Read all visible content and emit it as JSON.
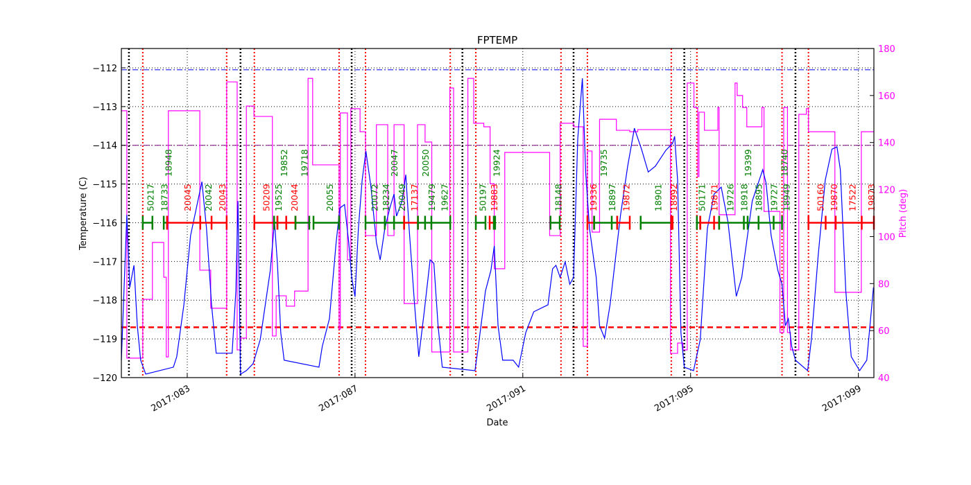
{
  "chart_data": {
    "type": "line",
    "title": "FPTEMP",
    "xlabel": "Date",
    "ylabel": "Temperature (C)",
    "y2label": "Pitch (deg)",
    "xlim": [
      81.43,
      99.37
    ],
    "ylim": [
      -120,
      -111.5
    ],
    "y2lim": [
      40,
      180
    ],
    "grid": true,
    "x_ticks": [
      {
        "value": 83,
        "label": "2017:083"
      },
      {
        "value": 87,
        "label": "2017:087"
      },
      {
        "value": 91,
        "label": "2017:091"
      },
      {
        "value": 95,
        "label": "2017:095"
      },
      {
        "value": 99,
        "label": "2017:099"
      }
    ],
    "y_ticks": [
      -120,
      -119,
      -118,
      -117,
      -116,
      -115,
      -114,
      -113,
      -112
    ],
    "y2_ticks": [
      40,
      60,
      80,
      100,
      120,
      140,
      160,
      180
    ],
    "colors": {
      "temperature": "#0000ff",
      "pitch": "#ff00ff",
      "green": "#008000",
      "red": "#ff0000",
      "purple": "#800080",
      "axis2": "#ff00ff"
    },
    "hlines": [
      {
        "value": -112.05,
        "color": "#0000ff",
        "style": "dashdot"
      },
      {
        "value": -114.0,
        "color": "#800080",
        "style": "dashdot"
      },
      {
        "value": -118.7,
        "color": "#ff0000",
        "style": "dashed"
      }
    ],
    "vlines_black": [
      81.61,
      84.27,
      86.92,
      89.56,
      92.21,
      94.85,
      97.5
    ],
    "vlines_red": [
      81.94,
      83.94,
      84.6,
      86.62,
      87.25,
      89.27,
      89.88,
      91.91,
      92.54,
      94.54,
      95.15,
      97.18,
      97.81
    ],
    "temperature": [
      [
        81.43,
        -119.55
      ],
      [
        81.56,
        -115.8
      ],
      [
        81.63,
        -117.67
      ],
      [
        81.73,
        -117.1
      ],
      [
        81.81,
        -118.66
      ],
      [
        81.89,
        -119.55
      ],
      [
        82.01,
        -119.91
      ],
      [
        82.67,
        -119.73
      ],
      [
        82.75,
        -119.46
      ],
      [
        82.92,
        -118.12
      ],
      [
        83.08,
        -116.33
      ],
      [
        83.35,
        -114.94
      ],
      [
        83.46,
        -116.15
      ],
      [
        83.58,
        -118.12
      ],
      [
        83.69,
        -119.37
      ],
      [
        84.07,
        -119.37
      ],
      [
        84.16,
        -117.76
      ],
      [
        84.21,
        -115.44
      ],
      [
        84.27,
        -119.91
      ],
      [
        84.41,
        -119.82
      ],
      [
        84.57,
        -119.64
      ],
      [
        84.74,
        -119.02
      ],
      [
        84.98,
        -117.23
      ],
      [
        85.08,
        -115.97
      ],
      [
        85.15,
        -117.05
      ],
      [
        85.23,
        -118.84
      ],
      [
        85.31,
        -119.55
      ],
      [
        86.14,
        -119.73
      ],
      [
        86.22,
        -119.19
      ],
      [
        86.39,
        -118.48
      ],
      [
        86.55,
        -116.51
      ],
      [
        86.64,
        -115.62
      ],
      [
        86.75,
        -115.53
      ],
      [
        86.85,
        -116.51
      ],
      [
        86.92,
        -117.41
      ],
      [
        87.0,
        -117.91
      ],
      [
        87.08,
        -116.15
      ],
      [
        87.17,
        -114.9
      ],
      [
        87.26,
        -114.15
      ],
      [
        87.38,
        -115.08
      ],
      [
        87.51,
        -116.51
      ],
      [
        87.6,
        -116.96
      ],
      [
        87.71,
        -116.15
      ],
      [
        87.83,
        -115.62
      ],
      [
        87.93,
        -115.26
      ],
      [
        87.99,
        -115.83
      ],
      [
        88.12,
        -115.44
      ],
      [
        88.21,
        -114.76
      ],
      [
        88.29,
        -116.15
      ],
      [
        88.42,
        -118.12
      ],
      [
        88.52,
        -119.46
      ],
      [
        88.65,
        -118.3
      ],
      [
        88.79,
        -116.96
      ],
      [
        88.88,
        -117.05
      ],
      [
        88.98,
        -118.66
      ],
      [
        89.08,
        -119.73
      ],
      [
        89.86,
        -119.82
      ],
      [
        89.94,
        -119.19
      ],
      [
        90.11,
        -117.76
      ],
      [
        90.24,
        -117.23
      ],
      [
        90.32,
        -116.6
      ],
      [
        90.41,
        -118.66
      ],
      [
        90.52,
        -119.55
      ],
      [
        90.77,
        -119.55
      ],
      [
        90.9,
        -119.73
      ],
      [
        91.07,
        -118.84
      ],
      [
        91.26,
        -118.3
      ],
      [
        91.6,
        -118.12
      ],
      [
        91.71,
        -117.19
      ],
      [
        91.79,
        -117.1
      ],
      [
        91.89,
        -117.41
      ],
      [
        92.01,
        -117.01
      ],
      [
        92.12,
        -117.59
      ],
      [
        92.21,
        -117.41
      ],
      [
        92.31,
        -113.83
      ],
      [
        92.42,
        -112.27
      ],
      [
        92.5,
        -114.72
      ],
      [
        92.59,
        -116.15
      ],
      [
        92.75,
        -117.41
      ],
      [
        92.83,
        -118.66
      ],
      [
        92.95,
        -118.98
      ],
      [
        93.08,
        -118.12
      ],
      [
        93.33,
        -115.8
      ],
      [
        93.5,
        -114.54
      ],
      [
        93.66,
        -113.56
      ],
      [
        93.83,
        -114.1
      ],
      [
        93.99,
        -114.69
      ],
      [
        94.16,
        -114.54
      ],
      [
        94.41,
        -114.13
      ],
      [
        94.57,
        -113.95
      ],
      [
        94.62,
        -113.77
      ],
      [
        94.69,
        -114.9
      ],
      [
        94.77,
        -118.84
      ],
      [
        94.85,
        -119.73
      ],
      [
        95.07,
        -119.82
      ],
      [
        95.23,
        -119.02
      ],
      [
        95.4,
        -116.15
      ],
      [
        95.56,
        -115.26
      ],
      [
        95.73,
        -115.08
      ],
      [
        95.89,
        -115.97
      ],
      [
        96.09,
        -117.9
      ],
      [
        96.22,
        -117.41
      ],
      [
        96.47,
        -115.44
      ],
      [
        96.72,
        -114.63
      ],
      [
        96.8,
        -114.98
      ],
      [
        96.92,
        -116.33
      ],
      [
        97.08,
        -117.23
      ],
      [
        97.18,
        -117.59
      ],
      [
        97.26,
        -118.66
      ],
      [
        97.33,
        -118.48
      ],
      [
        97.41,
        -119.19
      ],
      [
        97.5,
        -119.55
      ],
      [
        97.79,
        -119.82
      ],
      [
        97.88,
        -119.02
      ],
      [
        98.04,
        -116.87
      ],
      [
        98.21,
        -114.9
      ],
      [
        98.37,
        -114.1
      ],
      [
        98.49,
        -114.04
      ],
      [
        98.57,
        -114.63
      ],
      [
        98.7,
        -117.76
      ],
      [
        98.83,
        -119.46
      ],
      [
        99.03,
        -119.82
      ],
      [
        99.2,
        -119.55
      ],
      [
        99.36,
        -117.67
      ]
    ],
    "pitch_steps": [
      [
        81.43,
        153.5
      ],
      [
        81.56,
        48.3
      ],
      [
        81.94,
        73.3
      ],
      [
        82.17,
        97.5
      ],
      [
        82.44,
        82.7
      ],
      [
        82.5,
        48.8
      ],
      [
        82.55,
        153.5
      ],
      [
        83.3,
        85.7
      ],
      [
        83.56,
        69.5
      ],
      [
        83.94,
        165.8
      ],
      [
        84.19,
        51.8
      ],
      [
        84.27,
        56.8
      ],
      [
        84.41,
        155.5
      ],
      [
        84.59,
        151.1
      ],
      [
        85.03,
        57.7
      ],
      [
        85.12,
        74.8
      ],
      [
        85.36,
        70.4
      ],
      [
        85.56,
        76.8
      ],
      [
        85.88,
        167.3
      ],
      [
        85.99,
        130.5
      ],
      [
        86.62,
        60.6
      ],
      [
        86.65,
        152.6
      ],
      [
        86.82,
        90.1
      ],
      [
        86.9,
        154.4
      ],
      [
        87.12,
        144.6
      ],
      [
        87.25,
        100.4
      ],
      [
        87.51,
        147.6
      ],
      [
        87.78,
        100.4
      ],
      [
        87.93,
        147.6
      ],
      [
        88.17,
        71.5
      ],
      [
        88.49,
        147.6
      ],
      [
        88.67,
        140.2
      ],
      [
        88.83,
        50.9
      ],
      [
        89.26,
        163.2
      ],
      [
        89.35,
        50.9
      ],
      [
        89.69,
        167.3
      ],
      [
        89.83,
        148.2
      ],
      [
        90.07,
        146.7
      ],
      [
        90.22,
        122.5
      ],
      [
        90.32,
        86.3
      ],
      [
        90.57,
        135.8
      ],
      [
        91.64,
        100.4
      ],
      [
        91.89,
        148.2
      ],
      [
        92.21,
        146.7
      ],
      [
        92.44,
        53.3
      ],
      [
        92.54,
        136.4
      ],
      [
        92.65,
        101.9
      ],
      [
        92.83,
        149.9
      ],
      [
        93.23,
        145.2
      ],
      [
        93.55,
        144.6
      ],
      [
        93.74,
        145.5
      ],
      [
        94.52,
        50.3
      ],
      [
        94.69,
        54.7
      ],
      [
        94.82,
        51.8
      ],
      [
        94.92,
        165.3
      ],
      [
        95.08,
        154.9
      ],
      [
        95.17,
        125.5
      ],
      [
        95.2,
        152.9
      ],
      [
        95.33,
        145.2
      ],
      [
        95.65,
        154.9
      ],
      [
        95.68,
        109.3
      ],
      [
        96.06,
        165.3
      ],
      [
        96.11,
        160.0
      ],
      [
        96.24,
        154.9
      ],
      [
        96.34,
        146.7
      ],
      [
        96.7,
        154.9
      ],
      [
        96.75,
        110.7
      ],
      [
        97.13,
        59.2
      ],
      [
        97.22,
        154.9
      ],
      [
        97.31,
        59.2
      ],
      [
        97.38,
        51.8
      ],
      [
        97.58,
        152.0
      ],
      [
        97.76,
        154.4
      ],
      [
        97.81,
        144.6
      ],
      [
        98.44,
        76.3
      ],
      [
        99.07,
        144.6
      ],
      [
        99.37,
        144.6
      ]
    ],
    "segment_level": -116,
    "segments": [
      {
        "start": 81.94,
        "end": 82.17,
        "color": "green"
      },
      {
        "start": 82.44,
        "end": 82.52,
        "color": "green"
      },
      {
        "start": 82.52,
        "end": 83.94,
        "color": "red",
        "ticks": [
          83.31,
          83.58
        ]
      },
      {
        "start": 84.6,
        "end": 85.07,
        "color": "red"
      },
      {
        "start": 85.07,
        "end": 85.15,
        "color": "green"
      },
      {
        "start": 85.15,
        "end": 85.58,
        "color": "red",
        "ticks": [
          85.36
        ]
      },
      {
        "start": 85.58,
        "end": 85.91,
        "color": "green"
      },
      {
        "start": 86.01,
        "end": 86.62,
        "color": "green"
      },
      {
        "start": 87.25,
        "end": 88.17,
        "color": "green",
        "ticks": [
          87.71,
          87.93
        ]
      },
      {
        "start": 88.17,
        "end": 88.5,
        "color": "red"
      },
      {
        "start": 88.5,
        "end": 89.27,
        "color": "green",
        "ticks": [
          88.67,
          88.82
        ]
      },
      {
        "start": 89.88,
        "end": 90.11,
        "color": "green"
      },
      {
        "start": 90.21,
        "end": 90.31,
        "color": "red"
      },
      {
        "start": 90.31,
        "end": 90.34,
        "color": "green"
      },
      {
        "start": 91.66,
        "end": 91.88,
        "color": "green"
      },
      {
        "start": 92.54,
        "end": 92.7,
        "color": "red"
      },
      {
        "start": 92.7,
        "end": 93.25,
        "color": "green",
        "ticks": [
          93.12
        ]
      },
      {
        "start": 93.25,
        "end": 93.55,
        "color": "red"
      },
      {
        "start": 93.81,
        "end": 94.54,
        "color": "green"
      },
      {
        "start": 94.54,
        "end": 94.57,
        "color": "red"
      },
      {
        "start": 95.15,
        "end": 95.23,
        "color": "green"
      },
      {
        "start": 95.23,
        "end": 95.68,
        "color": "red",
        "ticks": [
          95.56
        ]
      },
      {
        "start": 95.68,
        "end": 97.18,
        "color": "green",
        "ticks": [
          96.27,
          96.36,
          96.62,
          96.98
        ]
      },
      {
        "start": 97.81,
        "end": 99.37,
        "color": "red",
        "ticks": [
          98.22,
          98.46,
          99.08
        ]
      }
    ],
    "annotations": [
      {
        "text": "50217",
        "day": 82.12,
        "color": "green"
      },
      {
        "text": "18733",
        "day": 82.45,
        "color": "green"
      },
      {
        "text": "18948",
        "day": 82.55,
        "color": "green"
      },
      {
        "text": "20045",
        "day": 83.0,
        "color": "red"
      },
      {
        "text": "20042",
        "day": 83.5,
        "color": "green"
      },
      {
        "text": "20043",
        "day": 83.83,
        "color": "red"
      },
      {
        "text": "50209",
        "day": 84.88,
        "color": "red"
      },
      {
        "text": "19525",
        "day": 85.17,
        "color": "green"
      },
      {
        "text": "19852",
        "day": 85.3,
        "color": "green"
      },
      {
        "text": "20044",
        "day": 85.55,
        "color": "red"
      },
      {
        "text": "19718",
        "day": 85.79,
        "color": "green"
      },
      {
        "text": "20055",
        "day": 86.39,
        "color": "green"
      },
      {
        "text": "20072",
        "day": 87.46,
        "color": "green"
      },
      {
        "text": "18234",
        "day": 87.73,
        "color": "green"
      },
      {
        "text": "20047",
        "day": 87.93,
        "color": "green"
      },
      {
        "text": "20049",
        "day": 88.11,
        "color": "green"
      },
      {
        "text": "17137",
        "day": 88.41,
        "color": "red"
      },
      {
        "text": "20050",
        "day": 88.67,
        "color": "green"
      },
      {
        "text": "19479",
        "day": 88.82,
        "color": "green"
      },
      {
        "text": "19627",
        "day": 89.13,
        "color": "green"
      },
      {
        "text": "50197",
        "day": 90.04,
        "color": "green"
      },
      {
        "text": "19883",
        "day": 90.31,
        "color": "red"
      },
      {
        "text": "19924",
        "day": 90.37,
        "color": "green"
      },
      {
        "text": "18148",
        "day": 91.84,
        "color": "green"
      },
      {
        "text": "19336",
        "day": 92.67,
        "color": "red"
      },
      {
        "text": "19735",
        "day": 92.92,
        "color": "green"
      },
      {
        "text": "18897",
        "day": 93.12,
        "color": "green"
      },
      {
        "text": "19872",
        "day": 93.46,
        "color": "red"
      },
      {
        "text": "18901",
        "day": 94.22,
        "color": "green"
      },
      {
        "text": "18992",
        "day": 94.59,
        "color": "red"
      },
      {
        "text": "50171",
        "day": 95.26,
        "color": "green"
      },
      {
        "text": "19871",
        "day": 95.56,
        "color": "red"
      },
      {
        "text": "19726",
        "day": 95.94,
        "color": "green"
      },
      {
        "text": "18918",
        "day": 96.27,
        "color": "green"
      },
      {
        "text": "19399",
        "day": 96.36,
        "color": "green"
      },
      {
        "text": "18895",
        "day": 96.62,
        "color": "green"
      },
      {
        "text": "19727",
        "day": 96.98,
        "color": "green"
      },
      {
        "text": "18740",
        "day": 97.23,
        "color": "green"
      },
      {
        "text": "18949",
        "day": 97.28,
        "color": "green"
      },
      {
        "text": "50160",
        "day": 98.09,
        "color": "red"
      },
      {
        "text": "19870",
        "day": 98.41,
        "color": "red"
      },
      {
        "text": "17522",
        "day": 98.85,
        "color": "red"
      },
      {
        "text": "19873",
        "day": 99.3,
        "color": "red"
      }
    ]
  }
}
